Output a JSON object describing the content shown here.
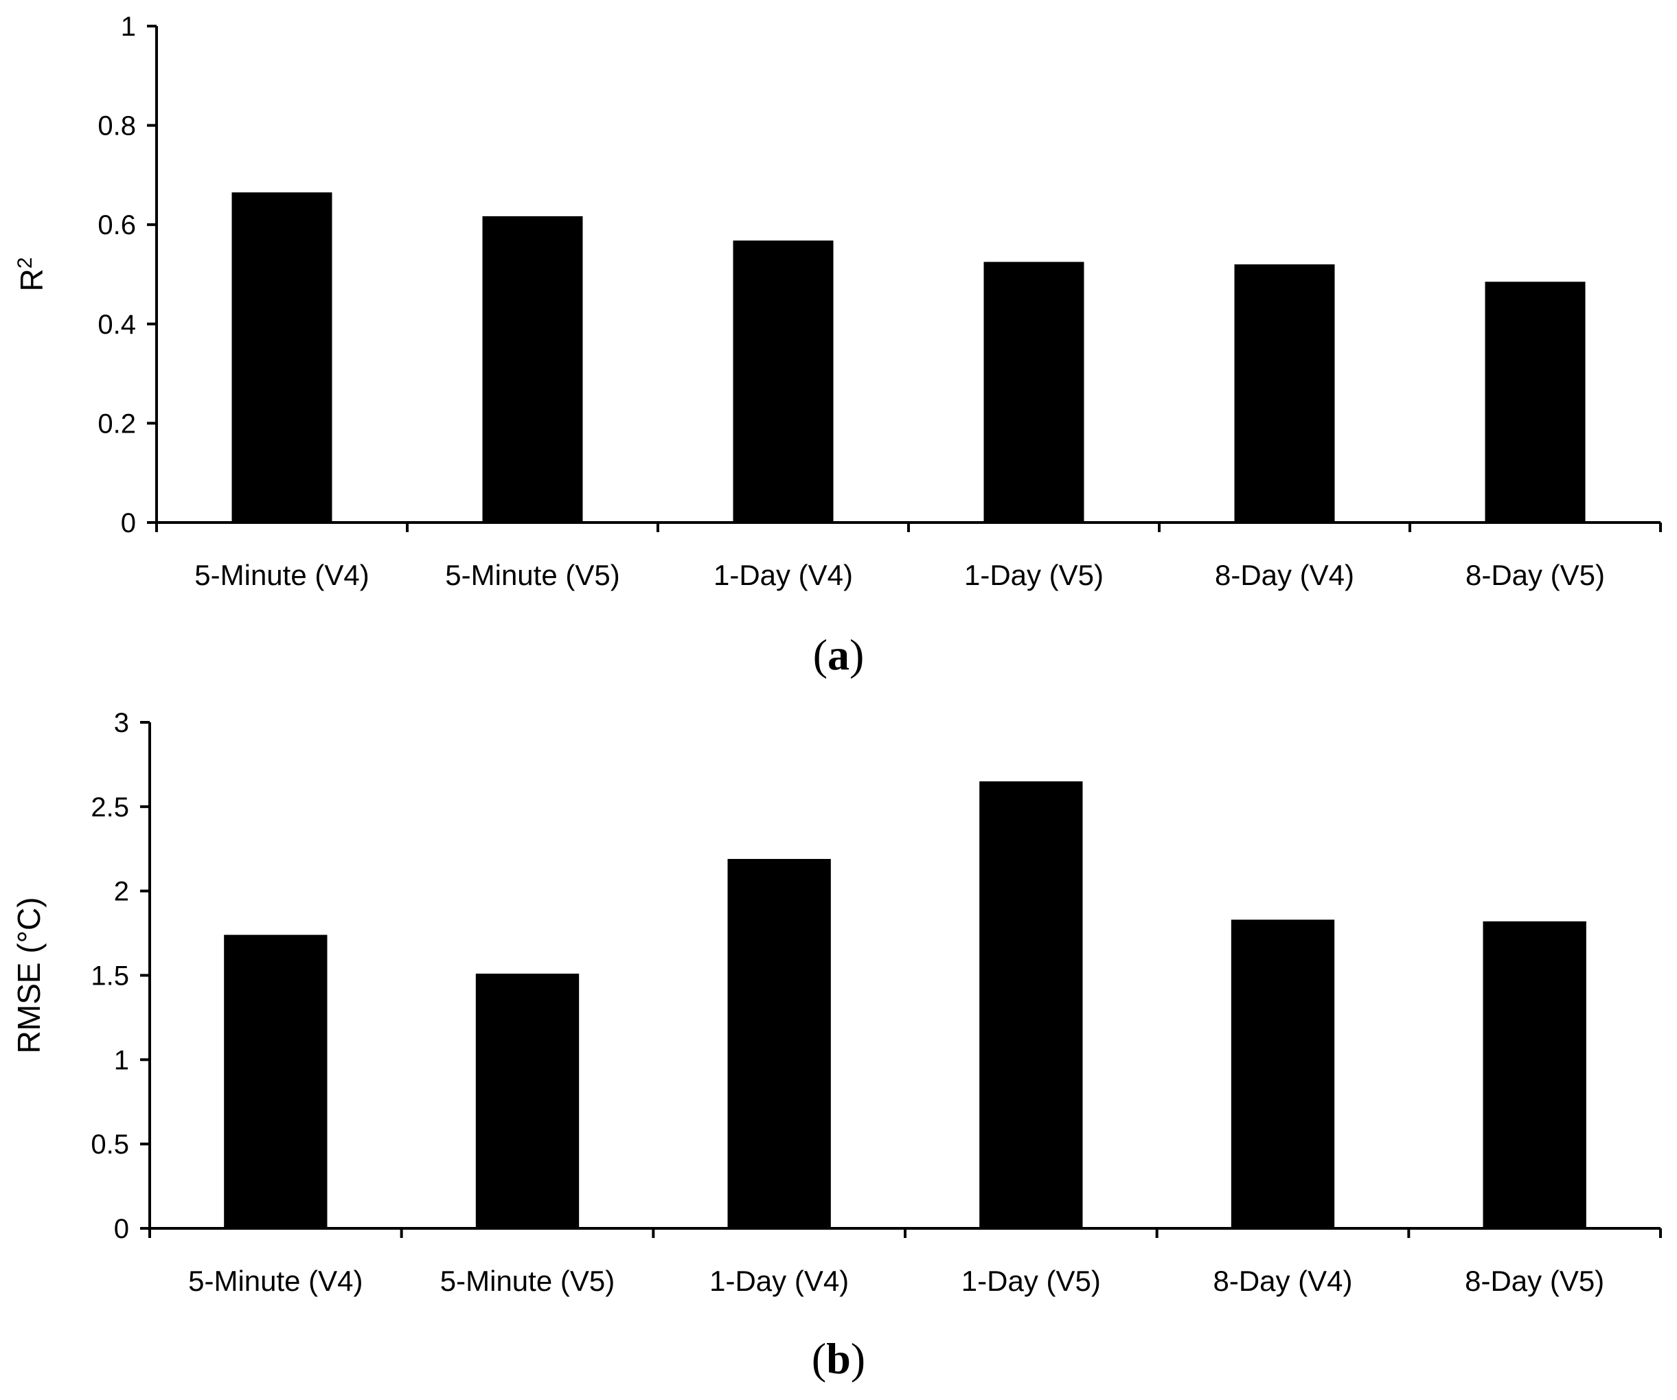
{
  "chart_data": [
    {
      "type": "bar",
      "panel_label": "a",
      "ylabel": "R",
      "ylabel_superscript": "2",
      "categories": [
        "5-Minute (V4)",
        "5-Minute (V5)",
        "1-Day (V4)",
        "1-Day (V5)",
        "8-Day (V4)",
        "8-Day (V5)"
      ],
      "values": [
        0.665,
        0.617,
        0.568,
        0.525,
        0.52,
        0.485
      ],
      "ylim": [
        0,
        1
      ],
      "yticks": [
        0,
        0.2,
        0.4,
        0.6,
        0.8,
        1
      ],
      "ytick_labels": [
        "0",
        "0.2",
        "0.4",
        "0.6",
        "0.8",
        "1"
      ],
      "bar_color": "#000000",
      "grid": false
    },
    {
      "type": "bar",
      "panel_label": "b",
      "ylabel": "RMSE (°C)",
      "categories": [
        "5-Minute (V4)",
        "5-Minute (V5)",
        "1-Day (V4)",
        "1-Day (V5)",
        "8-Day (V4)",
        "8-Day (V5)"
      ],
      "values": [
        1.74,
        1.51,
        2.19,
        2.65,
        1.83,
        1.82
      ],
      "ylim": [
        0,
        3
      ],
      "yticks": [
        0,
        0.5,
        1,
        1.5,
        2,
        2.5,
        3
      ],
      "ytick_labels": [
        "0",
        "0.5",
        "1",
        "1.5",
        "2",
        "2.5",
        "3"
      ],
      "bar_color": "#000000",
      "grid": false
    }
  ]
}
